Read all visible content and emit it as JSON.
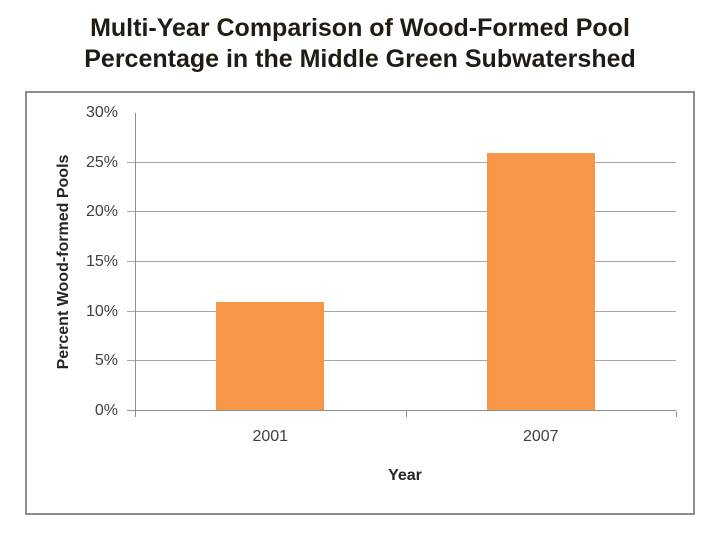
{
  "slide": {
    "title_lines": [
      "Multi-Year Comparison of Wood-Formed Pool",
      "Percentage in the Middle Green Subwatershed"
    ]
  },
  "chart_data": {
    "type": "bar",
    "title": "Multi-Year Comparison of Wood-Formed Pool Percentage in the Middle Green Subwatershed",
    "categories": [
      "2001",
      "2007"
    ],
    "values": [
      11,
      26
    ],
    "xlabel": "Year",
    "ylabel": "Percent Wood-formed Pools",
    "ylim": [
      0,
      30
    ],
    "ytick_step": 5,
    "ytick_labels": [
      "0%",
      "5%",
      "10%",
      "15%",
      "20%",
      "25%",
      "30%"
    ],
    "value_unit": "percent",
    "bar_color": "#F79646",
    "grid": true,
    "legend": false
  },
  "colors": {
    "bar": "#F79646",
    "gridline": "#A6A6A6",
    "axis": "#8E8E8E",
    "tick_text": "#404040",
    "frame_border": "#8D8D8D",
    "title_text": "#211B13"
  }
}
